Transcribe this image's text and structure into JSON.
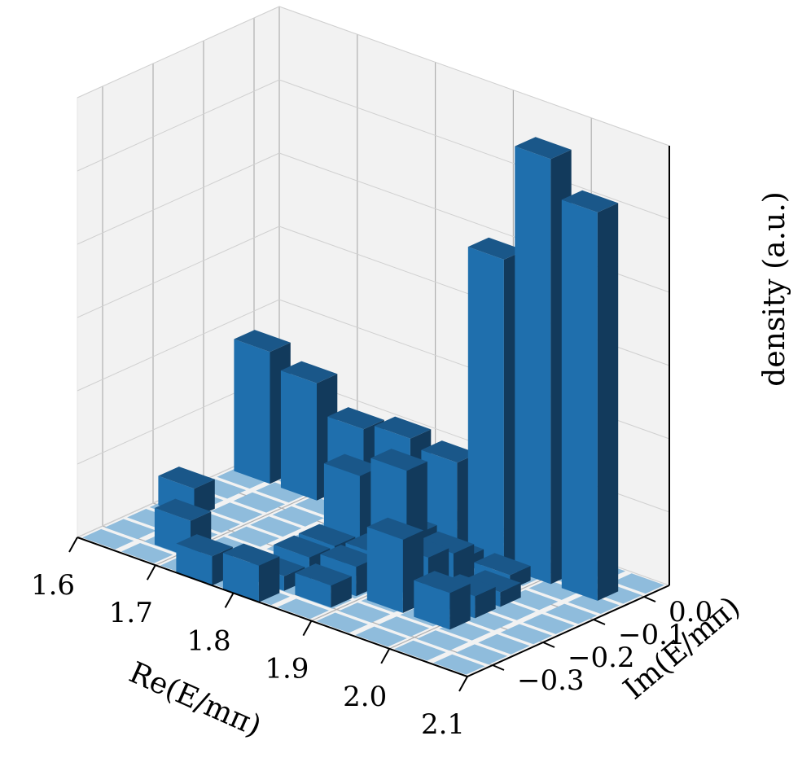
{
  "chart_data": {
    "type": "bar3d",
    "xlabel": "Re(E/mπ)",
    "ylabel": "Im(E/mπ)",
    "zlabel": "density (a.u.)",
    "x_ticks": [
      "1.6",
      "1.7",
      "1.8",
      "1.9",
      "2.0",
      "2.1"
    ],
    "y_ticks": [
      "−0.3",
      "−0.2",
      "−0.1",
      "0.0"
    ],
    "x_range": [
      1.6,
      2.1
    ],
    "y_range": [
      -0.35,
      0.05
    ],
    "grid": true,
    "colors": {
      "bar": "#1f6fad",
      "bar_side_dark": "#123a5c",
      "bar_side_mid": "#1a5789",
      "empty_cell": "#8fbcdc",
      "pane": "#f2f2f2"
    },
    "grid_size": {
      "re_bins": 10,
      "im_bins": 9
    },
    "bars": [
      {
        "re": 1.63,
        "im": -0.03,
        "value": 1.8
      },
      {
        "re": 1.69,
        "im": -0.03,
        "value": 1.6
      },
      {
        "re": 1.75,
        "im": -0.03,
        "value": 1.2
      },
      {
        "re": 1.81,
        "im": -0.03,
        "value": 1.3
      },
      {
        "re": 1.87,
        "im": -0.03,
        "value": 1.2
      },
      {
        "re": 1.93,
        "im": -0.03,
        "value": 4.2
      },
      {
        "re": 1.99,
        "im": -0.03,
        "value": 5.8
      },
      {
        "re": 2.05,
        "im": -0.03,
        "value": 5.3
      },
      {
        "re": 1.79,
        "im": -0.08,
        "value": 0.2
      },
      {
        "re": 1.85,
        "im": -0.08,
        "value": 0.3
      },
      {
        "re": 1.91,
        "im": -0.08,
        "value": 0.2
      },
      {
        "re": 1.97,
        "im": -0.08,
        "value": 0.2
      },
      {
        "re": 1.81,
        "im": -0.13,
        "value": 1.1
      },
      {
        "re": 1.87,
        "im": -0.13,
        "value": 1.4
      },
      {
        "re": 1.93,
        "im": -0.13,
        "value": 0.5
      },
      {
        "re": 1.99,
        "im": -0.13,
        "value": 0.2
      },
      {
        "re": 1.63,
        "im": -0.18,
        "value": 0.4
      },
      {
        "re": 1.81,
        "im": -0.18,
        "value": 0.3
      },
      {
        "re": 1.87,
        "im": -0.18,
        "value": 0.4
      },
      {
        "re": 1.93,
        "im": -0.18,
        "value": 0.6
      },
      {
        "re": 1.99,
        "im": -0.18,
        "value": 0.3
      },
      {
        "re": 1.81,
        "im": -0.23,
        "value": 0.3
      },
      {
        "re": 1.87,
        "im": -0.23,
        "value": 0.4
      },
      {
        "re": 1.93,
        "im": -0.23,
        "value": 1.0
      },
      {
        "re": 1.99,
        "im": -0.23,
        "value": 0.5
      },
      {
        "re": 1.69,
        "im": -0.28,
        "value": 0.5
      },
      {
        "re": 1.81,
        "im": -0.28,
        "value": 0.2
      },
      {
        "re": 1.87,
        "im": -0.28,
        "value": 0.3
      },
      {
        "re": 1.75,
        "im": -0.33,
        "value": 0.4
      },
      {
        "re": 1.81,
        "im": -0.33,
        "value": 0.5
      }
    ]
  }
}
